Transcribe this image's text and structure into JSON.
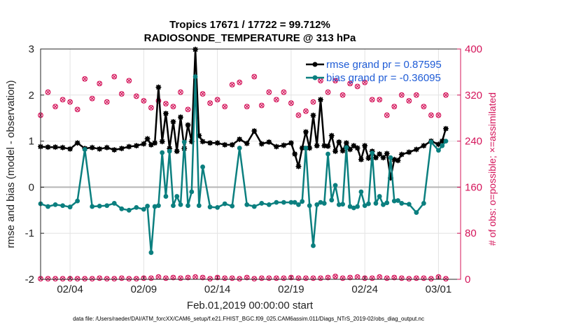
{
  "chart_data": {
    "type": "line",
    "title": "Tropics 17671 / 17722 = 99.712%",
    "subtitle": "RADIOSONDE_TEMPERATURE @ 313 hPa",
    "xlabel": "Feb.01,2019 00:00:00 start",
    "ylabel": "rmse and bias (model - observation)",
    "ylabel_right": "# of obs: o=possible; ×=assimilated",
    "footnote": "data file: /Users/raeder/DAI/ATM_forcXX/CAM6_setup/f.e21.FHIST_BGC.f09_025.CAM6assim.011/Diags_NTrS_2019-02/obs_diag_output.nc",
    "xlim": [
      1.0,
      29.5
    ],
    "ylim": [
      -2,
      3
    ],
    "ylim_right": [
      0,
      400
    ],
    "x_ticks": [
      3,
      8,
      13,
      18,
      23,
      28
    ],
    "x_tick_labels": [
      "02/04",
      "02/09",
      "02/14",
      "02/19",
      "02/24",
      "03/01"
    ],
    "y_ticks": [
      -2,
      -1,
      0,
      1,
      2,
      3
    ],
    "y_tick_labels": [
      "-2",
      "-1",
      "0",
      "1",
      "2",
      "3"
    ],
    "y_right_ticks": [
      0,
      80,
      160,
      240,
      320,
      400
    ],
    "y_right_tick_labels": [
      "0",
      "80",
      "160",
      "240",
      "320",
      "400"
    ],
    "zero_line": 0,
    "colors": {
      "rmse": "#000000",
      "bias": "#0b7f7f",
      "obs": "#d4145a",
      "zero": "#b5b5b5",
      "legend_text": "#1f5cd6"
    },
    "legend": {
      "placement": "top-right",
      "entries": [
        "rmse grand pr = 0.87595",
        "bias grand pr = -0.36095"
      ]
    },
    "series": [
      {
        "name": "rmse grand pr = 0.87595",
        "x": [
          1.0,
          1.5,
          2.0,
          2.5,
          3.0,
          3.5,
          4.0,
          4.5,
          5.0,
          5.5,
          6.0,
          6.5,
          7.0,
          7.5,
          8.0,
          8.25,
          8.5,
          8.75,
          9.0,
          9.25,
          9.5,
          9.75,
          10.0,
          10.25,
          10.5,
          10.75,
          11.0,
          11.25,
          11.5,
          11.75,
          12.0,
          12.5,
          13.0,
          13.5,
          14.0,
          14.5,
          15.0,
          15.5,
          16.0,
          16.5,
          17.0,
          17.5,
          18.0,
          18.25,
          18.5,
          18.75,
          19.0,
          19.25,
          19.5,
          19.75,
          20.0,
          20.25,
          20.5,
          20.75,
          21.0,
          21.25,
          21.5,
          21.75,
          22.0,
          22.25,
          22.5,
          22.75,
          23.0,
          23.25,
          23.5,
          23.75,
          24.0,
          24.25,
          24.5,
          24.75,
          25.0,
          25.25,
          25.5,
          26.0,
          26.5,
          27.0,
          27.5,
          28.0,
          28.25,
          28.5
        ],
        "values": [
          0.88,
          0.87,
          0.87,
          0.86,
          0.83,
          0.96,
          0.84,
          0.86,
          0.83,
          0.86,
          0.81,
          0.84,
          0.88,
          0.9,
          0.94,
          1.05,
          0.92,
          0.96,
          2.17,
          0.99,
          1.6,
          0.84,
          1.42,
          0.78,
          1.52,
          0.84,
          1.35,
          0.99,
          2.99,
          1.12,
          0.99,
          0.96,
          0.96,
          0.92,
          0.92,
          1.04,
          0.95,
          1.22,
          0.94,
          0.98,
          0.88,
          0.91,
          0.96,
          0.72,
          0.45,
          0.85,
          1.2,
          0.85,
          1.56,
          0.9,
          1.9,
          0.9,
          0.89,
          1.12,
          0.78,
          0.98,
          0.79,
          0.96,
          0.82,
          0.9,
          0.85,
          0.6,
          0.9,
          0.63,
          0.78,
          0.64,
          0.72,
          0.64,
          0.73,
          0.2,
          0.6,
          0.58,
          0.71,
          0.76,
          0.82,
          0.9,
          1.0,
          0.93,
          1.0,
          1.27
        ]
      },
      {
        "name": "bias grand pr = -0.36095",
        "x": [
          1.0,
          1.5,
          2.0,
          2.5,
          3.0,
          3.5,
          4.0,
          4.5,
          5.0,
          5.5,
          6.0,
          6.5,
          7.0,
          7.5,
          8.0,
          8.25,
          8.5,
          8.75,
          9.0,
          9.25,
          9.5,
          9.75,
          10.0,
          10.25,
          10.5,
          10.75,
          11.0,
          11.25,
          11.5,
          11.75,
          12.0,
          12.5,
          13.0,
          13.5,
          14.0,
          14.5,
          15.0,
          15.5,
          16.0,
          16.5,
          17.0,
          17.5,
          18.0,
          18.25,
          18.5,
          18.75,
          19.0,
          19.25,
          19.5,
          19.75,
          20.0,
          20.25,
          20.5,
          20.75,
          21.0,
          21.25,
          21.5,
          21.75,
          22.0,
          22.25,
          22.5,
          22.75,
          23.0,
          23.25,
          23.5,
          23.75,
          24.0,
          24.25,
          24.5,
          24.75,
          25.0,
          25.25,
          25.5,
          26.0,
          26.5,
          27.0,
          27.5,
          28.0,
          28.25,
          28.5
        ],
        "values": [
          -0.36,
          -0.42,
          -0.38,
          -0.4,
          -0.43,
          -0.3,
          0.82,
          -0.42,
          -0.41,
          -0.4,
          -0.35,
          -0.47,
          -0.5,
          -0.44,
          -0.48,
          -0.41,
          -1.42,
          -0.42,
          -0.4,
          0.75,
          -0.2,
          0.78,
          -0.4,
          -0.2,
          -0.38,
          0.98,
          -0.4,
          -0.1,
          2.4,
          -0.4,
          0.44,
          -0.43,
          -0.44,
          -0.36,
          -0.41,
          0.85,
          -0.38,
          -0.42,
          -0.35,
          -0.38,
          -0.33,
          -0.33,
          -0.33,
          -0.33,
          -0.38,
          -0.31,
          0.85,
          -0.4,
          -1.27,
          -0.38,
          -0.33,
          -0.35,
          0.72,
          -0.28,
          0.04,
          -0.38,
          -0.37,
          0.86,
          -0.42,
          -0.45,
          -0.42,
          -0.1,
          -0.4,
          -0.36,
          0.74,
          -0.35,
          -0.2,
          -0.38,
          -0.34,
          0.64,
          -0.3,
          -0.29,
          -0.35,
          -0.37,
          -0.55,
          -0.35,
          0.98,
          0.8,
          0.9,
          1.0
        ]
      },
      {
        "name": "# of obs possible/assimilated (upper)",
        "axis": "right",
        "x": [
          1.0,
          1.5,
          2.0,
          2.5,
          3.0,
          3.5,
          4.0,
          4.5,
          5.0,
          5.5,
          6.0,
          6.5,
          7.0,
          7.5,
          8.0,
          8.5,
          9.0,
          9.5,
          10.0,
          10.5,
          11.0,
          11.5,
          12.0,
          12.5,
          13.0,
          13.5,
          14.0,
          14.5,
          15.0,
          15.5,
          16.0,
          16.5,
          17.0,
          17.5,
          18.0,
          18.5,
          19.0,
          19.5,
          20.0,
          20.5,
          21.0,
          21.5,
          22.0,
          22.5,
          23.0,
          23.5,
          24.0,
          24.5,
          25.0,
          25.5,
          26.0,
          26.5,
          27.0,
          27.5,
          28.0,
          28.5
        ],
        "values": [
          285,
          325,
          300,
          312,
          308,
          295,
          348,
          314,
          340,
          308,
          352,
          322,
          345,
          318,
          310,
          298,
          310,
          305,
          300,
          325,
          295,
          305,
          322,
          306,
          312,
          300,
          338,
          342,
          300,
          352,
          302,
          325,
          312,
          325,
          306,
          285,
          292,
          308,
          345,
          325,
          345,
          320,
          340,
          335,
          342,
          312,
          312,
          285,
          300,
          320,
          310,
          320,
          300,
          285,
          285,
          320
        ]
      },
      {
        "name": "# of obs possible/assimilated (lower)",
        "axis": "right",
        "x": [
          1.0,
          1.5,
          2.0,
          2.5,
          3.0,
          3.5,
          4.0,
          4.5,
          5.0,
          5.5,
          6.0,
          6.5,
          7.0,
          7.5,
          8.0,
          8.5,
          9.0,
          9.5,
          10.0,
          10.5,
          11.0,
          11.5,
          12.0,
          12.5,
          13.0,
          13.5,
          14.0,
          14.5,
          15.0,
          15.5,
          16.0,
          16.5,
          17.0,
          17.5,
          18.0,
          18.5,
          19.0,
          19.5,
          20.0,
          20.5,
          21.0,
          21.5,
          22.0,
          22.5,
          23.0,
          23.5,
          24.0,
          24.5,
          25.0,
          25.5,
          26.0,
          26.5,
          27.0,
          27.5,
          28.0,
          28.5
        ],
        "values": [
          1,
          1,
          1,
          1,
          1,
          1,
          1,
          1,
          2,
          1,
          1,
          2,
          1,
          1,
          2,
          2,
          4,
          2,
          3,
          2,
          3,
          4,
          3,
          1,
          3,
          2,
          2,
          1,
          3,
          1,
          2,
          2,
          2,
          2,
          3,
          2,
          2,
          2,
          2,
          3,
          5,
          2,
          3,
          4,
          2,
          2,
          4,
          2,
          3,
          2,
          1,
          2,
          2,
          1,
          4,
          1
        ]
      }
    ]
  }
}
